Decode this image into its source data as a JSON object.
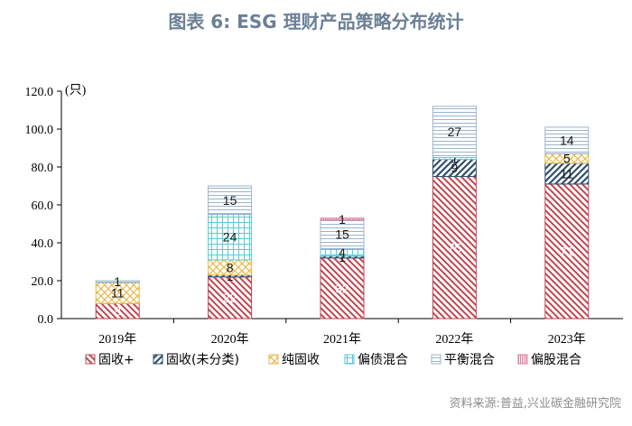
{
  "page": {
    "title": "图表 6:  ESG 理财产品策略分布统计",
    "source": "资料来源:普益,兴业碳金融研究院"
  },
  "chart_data": {
    "type": "stacked-bar",
    "title": "图表 6:  ESG 理财产品策略分布统计",
    "ylabel": "(只)",
    "ylim": [
      0,
      120
    ],
    "yticks": [
      "0.0",
      "20.0",
      "40.0",
      "60.0",
      "80.0",
      "100.0",
      "120.0"
    ],
    "categories": [
      "2019年",
      "2020年",
      "2021年",
      "2022年",
      "2023年"
    ],
    "legend_position": "bottom",
    "series": [
      {
        "name": "固收+",
        "values": [
          8,
          22,
          32,
          75,
          71
        ],
        "labels": [
          "8",
          "22",
          "32",
          "75",
          "71"
        ],
        "color": "#c0454f",
        "pattern": "diag-down"
      },
      {
        "name": "固收(未分类)",
        "values": [
          0,
          1,
          1,
          9,
          11
        ],
        "labels": [
          "",
          "1",
          "1",
          "9",
          "11"
        ],
        "color": "#2f4f6f",
        "pattern": "diag-up"
      },
      {
        "name": "纯固收",
        "values": [
          11,
          8,
          0,
          0,
          5
        ],
        "labels": [
          "11",
          "8",
          "",
          "",
          "5"
        ],
        "color": "#e8b94a",
        "pattern": "cross"
      },
      {
        "name": "偏债混合",
        "values": [
          0,
          24,
          4,
          1,
          0
        ],
        "labels": [
          "",
          "24",
          "4",
          "1",
          ""
        ],
        "color": "#5bc9d6",
        "pattern": "grid"
      },
      {
        "name": "平衡混合",
        "values": [
          1,
          15,
          15,
          27,
          14
        ],
        "labels": [
          "1",
          "15",
          "15",
          "27",
          "14"
        ],
        "color": "#9ab4cc",
        "pattern": "hlines"
      },
      {
        "name": "偏股混合",
        "values": [
          0,
          0,
          1,
          0,
          0
        ],
        "labels": [
          "",
          "",
          "1",
          "",
          ""
        ],
        "color": "#e07a9a",
        "pattern": "vlines"
      }
    ]
  }
}
